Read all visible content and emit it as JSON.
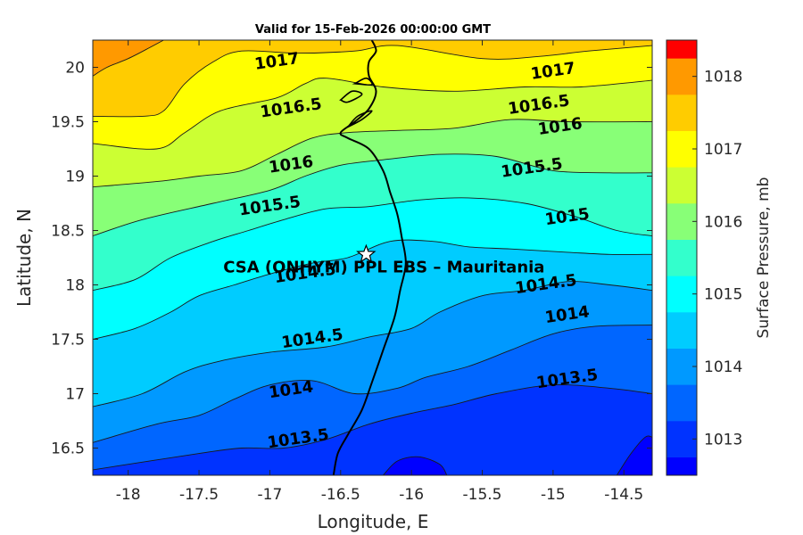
{
  "chart_data": {
    "type": "contour",
    "title": "Valid for 15-Feb-2026 00:00:00 GMT",
    "xlabel": "Longitude, E",
    "ylabel": "Latitude, N",
    "xlim": [
      -18.25,
      -14.3
    ],
    "ylim": [
      16.25,
      20.25
    ],
    "x_ticks": [
      "-18",
      "-17.5",
      "-17",
      "-16.5",
      "-16",
      "-15.5",
      "-15",
      "-14.5"
    ],
    "y_ticks": [
      "16.5",
      "17",
      "17.5",
      "18",
      "18.5",
      "19",
      "19.5",
      "20"
    ],
    "colorbar": {
      "label": "Surface Pressure, mb",
      "range": [
        1012.5,
        1018.5
      ],
      "ticks": [
        "1013",
        "1014",
        "1015",
        "1016",
        "1017",
        "1018"
      ],
      "levels": [
        {
          "from": 1012.5,
          "to": 1012.75,
          "color": "#0000ff"
        },
        {
          "from": 1012.75,
          "to": 1013.25,
          "color": "#0033ff"
        },
        {
          "from": 1013.25,
          "to": 1013.75,
          "color": "#0066ff"
        },
        {
          "from": 1013.75,
          "to": 1014.25,
          "color": "#0099ff"
        },
        {
          "from": 1014.25,
          "to": 1014.75,
          "color": "#00ccff"
        },
        {
          "from": 1014.75,
          "to": 1015.25,
          "color": "#00ffff"
        },
        {
          "from": 1015.25,
          "to": 1015.75,
          "color": "#33ffcc"
        },
        {
          "from": 1015.75,
          "to": 1016.25,
          "color": "#88ff77"
        },
        {
          "from": 1016.25,
          "to": 1016.75,
          "color": "#ccff33"
        },
        {
          "from": 1016.75,
          "to": 1017.25,
          "color": "#ffff00"
        },
        {
          "from": 1017.25,
          "to": 1017.75,
          "color": "#ffcc00"
        },
        {
          "from": 1017.75,
          "to": 1018.25,
          "color": "#ff9900"
        },
        {
          "from": 1018.25,
          "to": 1018.5,
          "color": "#ff0000"
        }
      ]
    },
    "contour_labels": [
      {
        "text": "1017",
        "lon": -16.95,
        "lat": 20.05
      },
      {
        "text": "1017",
        "lon": -15.0,
        "lat": 19.96
      },
      {
        "text": "1016.5",
        "lon": -16.85,
        "lat": 19.62
      },
      {
        "text": "1016.5",
        "lon": -15.1,
        "lat": 19.65
      },
      {
        "text": "1016",
        "lon": -16.85,
        "lat": 19.1
      },
      {
        "text": "1016",
        "lon": -14.95,
        "lat": 19.45
      },
      {
        "text": "1015.5",
        "lon": -17.0,
        "lat": 18.72
      },
      {
        "text": "1015.5",
        "lon": -15.15,
        "lat": 19.07
      },
      {
        "text": "1015",
        "lon": -14.9,
        "lat": 18.62
      },
      {
        "text": "1014.5",
        "lon": -15.05,
        "lat": 18.0
      },
      {
        "text": "1014.5",
        "lon": -16.7,
        "lat": 17.5
      },
      {
        "text": "1014",
        "lon": -14.9,
        "lat": 17.72
      },
      {
        "text": "1014",
        "lon": -16.85,
        "lat": 17.03
      },
      {
        "text": "1013.5",
        "lon": -14.9,
        "lat": 17.13
      },
      {
        "text": "1013.5",
        "lon": -16.8,
        "lat": 16.58
      },
      {
        "text": "1014.5",
        "lon": -16.75,
        "lat": 18.1
      }
    ],
    "contours": [
      {
        "level": 1017.75,
        "points": [
          [
            -18.25,
            19.92
          ],
          [
            -18.15,
            20.0
          ],
          [
            -18.0,
            20.08
          ],
          [
            -17.85,
            20.18
          ],
          [
            -17.75,
            20.25
          ]
        ]
      },
      {
        "level": 1017.25,
        "points": [
          [
            -18.25,
            19.55
          ],
          [
            -17.9,
            19.55
          ],
          [
            -17.75,
            19.6
          ],
          [
            -17.6,
            19.85
          ],
          [
            -17.4,
            20.05
          ],
          [
            -17.2,
            20.15
          ],
          [
            -16.8,
            20.13
          ],
          [
            -16.4,
            20.15
          ],
          [
            -16.1,
            20.2
          ],
          [
            -15.5,
            20.08
          ],
          [
            -15.1,
            20.1
          ],
          [
            -14.75,
            20.15
          ],
          [
            -14.3,
            20.2
          ]
        ]
      },
      {
        "level": 1016.75,
        "points": [
          [
            -18.25,
            19.3
          ],
          [
            -17.8,
            19.25
          ],
          [
            -17.6,
            19.4
          ],
          [
            -17.35,
            19.6
          ],
          [
            -16.95,
            19.72
          ],
          [
            -16.75,
            19.85
          ],
          [
            -16.6,
            19.9
          ],
          [
            -16.2,
            19.82
          ],
          [
            -15.7,
            19.78
          ],
          [
            -15.2,
            19.82
          ],
          [
            -14.8,
            19.82
          ],
          [
            -14.3,
            19.88
          ]
        ]
      },
      {
        "level": 1016.25,
        "points": [
          [
            -18.25,
            18.9
          ],
          [
            -17.8,
            18.95
          ],
          [
            -17.5,
            19.0
          ],
          [
            -17.2,
            19.05
          ],
          [
            -16.95,
            19.2
          ],
          [
            -16.7,
            19.35
          ],
          [
            -16.45,
            19.4
          ],
          [
            -16.1,
            19.42
          ],
          [
            -15.7,
            19.44
          ],
          [
            -15.3,
            19.52
          ],
          [
            -14.9,
            19.5
          ],
          [
            -14.3,
            19.5
          ]
        ]
      },
      {
        "level": 1015.75,
        "points": [
          [
            -18.25,
            18.45
          ],
          [
            -17.9,
            18.6
          ],
          [
            -17.4,
            18.75
          ],
          [
            -17.0,
            18.87
          ],
          [
            -16.75,
            19.0
          ],
          [
            -16.5,
            19.1
          ],
          [
            -16.2,
            19.15
          ],
          [
            -15.8,
            19.2
          ],
          [
            -15.4,
            19.18
          ],
          [
            -15.0,
            19.05
          ],
          [
            -14.6,
            19.03
          ],
          [
            -14.3,
            19.03
          ]
        ]
      },
      {
        "level": 1015.25,
        "points": [
          [
            -18.25,
            17.95
          ],
          [
            -17.95,
            18.05
          ],
          [
            -17.7,
            18.25
          ],
          [
            -17.4,
            18.4
          ],
          [
            -17.15,
            18.5
          ],
          [
            -16.9,
            18.6
          ],
          [
            -16.6,
            18.7
          ],
          [
            -16.3,
            18.72
          ],
          [
            -15.95,
            18.78
          ],
          [
            -15.6,
            18.8
          ],
          [
            -15.2,
            18.75
          ],
          [
            -14.85,
            18.63
          ],
          [
            -14.55,
            18.5
          ],
          [
            -14.3,
            18.45
          ]
        ]
      },
      {
        "level": 1014.75,
        "points": [
          [
            -18.25,
            17.5
          ],
          [
            -17.95,
            17.6
          ],
          [
            -17.7,
            17.75
          ],
          [
            -17.5,
            17.9
          ],
          [
            -17.25,
            18.0
          ],
          [
            -17.0,
            18.1
          ],
          [
            -16.7,
            18.2
          ],
          [
            -16.45,
            18.25
          ],
          [
            -16.15,
            18.4
          ],
          [
            -15.85,
            18.4
          ],
          [
            -15.6,
            18.35
          ],
          [
            -15.3,
            18.33
          ],
          [
            -14.9,
            18.3
          ],
          [
            -14.6,
            18.28
          ],
          [
            -14.3,
            18.28
          ]
        ]
      },
      {
        "level": 1014.25,
        "points": [
          [
            -18.25,
            16.88
          ],
          [
            -17.9,
            17.0
          ],
          [
            -17.6,
            17.2
          ],
          [
            -17.35,
            17.3
          ],
          [
            -17.0,
            17.38
          ],
          [
            -16.6,
            17.43
          ],
          [
            -16.3,
            17.52
          ],
          [
            -16.0,
            17.6
          ],
          [
            -15.8,
            17.75
          ],
          [
            -15.5,
            17.9
          ],
          [
            -15.2,
            17.95
          ],
          [
            -14.9,
            18.03
          ],
          [
            -14.6,
            18.0
          ],
          [
            -14.3,
            17.95
          ]
        ]
      },
      {
        "level": 1013.75,
        "points": [
          [
            -18.25,
            16.55
          ],
          [
            -17.8,
            16.72
          ],
          [
            -17.5,
            16.8
          ],
          [
            -17.25,
            16.95
          ],
          [
            -17.0,
            17.08
          ],
          [
            -16.7,
            17.12
          ],
          [
            -16.4,
            17.0
          ],
          [
            -16.1,
            17.05
          ],
          [
            -15.9,
            17.15
          ],
          [
            -15.6,
            17.25
          ],
          [
            -15.3,
            17.4
          ],
          [
            -15.0,
            17.55
          ],
          [
            -14.7,
            17.62
          ],
          [
            -14.3,
            17.63
          ]
        ]
      },
      {
        "level": 1013.25,
        "points": [
          [
            -18.25,
            16.3
          ],
          [
            -17.5,
            16.45
          ],
          [
            -17.2,
            16.5
          ],
          [
            -16.9,
            16.5
          ],
          [
            -16.6,
            16.58
          ],
          [
            -16.3,
            16.72
          ],
          [
            -16.0,
            16.82
          ],
          [
            -15.7,
            16.9
          ],
          [
            -15.4,
            17.0
          ],
          [
            -15.0,
            17.08
          ],
          [
            -14.6,
            17.05
          ],
          [
            -14.3,
            17.0
          ]
        ]
      },
      {
        "level": 1012.75,
        "points": [
          [
            -16.2,
            16.25
          ],
          [
            -16.1,
            16.38
          ],
          [
            -15.95,
            16.42
          ],
          [
            -15.8,
            16.35
          ],
          [
            -15.75,
            16.25
          ]
        ]
      },
      {
        "level": 1012.75,
        "points": [
          [
            -14.55,
            16.25
          ],
          [
            -14.45,
            16.45
          ],
          [
            -14.35,
            16.6
          ],
          [
            -14.3,
            16.6
          ]
        ]
      }
    ],
    "coastline": [
      [
        -16.55,
        16.25
      ],
      [
        -16.52,
        16.45
      ],
      [
        -16.45,
        16.62
      ],
      [
        -16.35,
        16.85
      ],
      [
        -16.28,
        17.1
      ],
      [
        -16.2,
        17.4
      ],
      [
        -16.12,
        17.7
      ],
      [
        -16.08,
        17.95
      ],
      [
        -16.04,
        18.2
      ],
      [
        -16.07,
        18.45
      ],
      [
        -16.1,
        18.65
      ],
      [
        -16.15,
        18.85
      ],
      [
        -16.2,
        19.05
      ],
      [
        -16.3,
        19.25
      ],
      [
        -16.45,
        19.35
      ],
      [
        -16.5,
        19.4
      ],
      [
        -16.4,
        19.5
      ],
      [
        -16.3,
        19.62
      ],
      [
        -16.25,
        19.78
      ],
      [
        -16.3,
        19.92
      ],
      [
        -16.3,
        20.05
      ],
      [
        -16.25,
        20.15
      ],
      [
        -16.28,
        20.25
      ]
    ],
    "islands": [
      [
        [
          -16.45,
          19.45
        ],
        [
          -16.35,
          19.52
        ],
        [
          -16.28,
          19.6
        ],
        [
          -16.38,
          19.55
        ],
        [
          -16.45,
          19.45
        ]
      ],
      [
        [
          -16.5,
          19.7
        ],
        [
          -16.42,
          19.78
        ],
        [
          -16.35,
          19.75
        ],
        [
          -16.45,
          19.68
        ],
        [
          -16.5,
          19.7
        ]
      ],
      [
        [
          -16.4,
          19.85
        ],
        [
          -16.32,
          19.9
        ],
        [
          -16.28,
          19.84
        ],
        [
          -16.4,
          19.85
        ]
      ]
    ],
    "site": {
      "name": "CSA (ONHYM) PPL EBS  – Mauritania",
      "lon": -16.32,
      "lat": 18.28
    }
  }
}
